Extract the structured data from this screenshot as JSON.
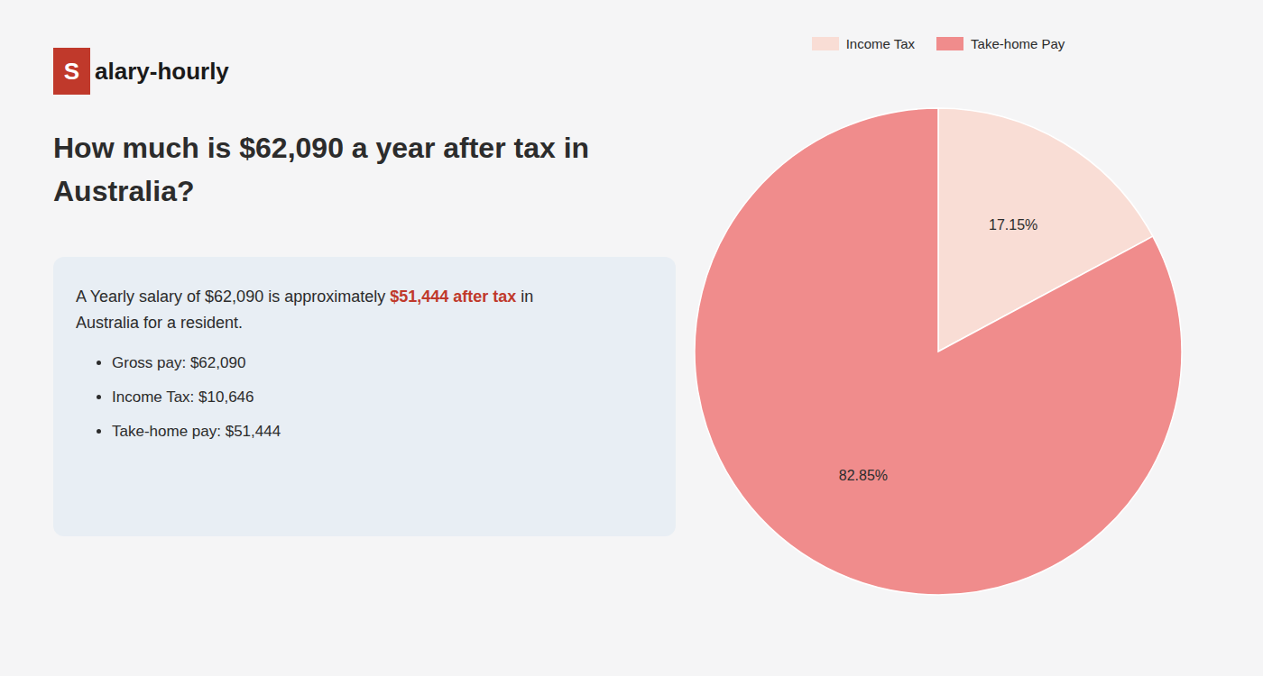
{
  "chart_data": {
    "type": "pie",
    "title": "How much is $62,090 a year after tax in Australia?",
    "categories": [
      "Income Tax",
      "Take-home Pay"
    ],
    "values": [
      17.15,
      82.85
    ],
    "value_labels": [
      "17.15%",
      "82.85%"
    ],
    "colors": [
      "#f9ddd5",
      "#f08c8c"
    ],
    "data_labels": true,
    "legend": "top",
    "annotations": [
      {
        "text": "S",
        "color": "#c0392b"
      },
      {
        "text": "alary-hourly"
      },
      {
        "text": "A Yearly salary of $62,090 is approximately "
      },
      {
        "text": "$51,444 after tax",
        "color": "#c0392b"
      },
      {
        "text": " in"
      },
      {
        "text": "Australia for a resident."
      },
      {
        "text": "Gross pay: $62,090"
      },
      {
        "text": "Income Tax: $10,646"
      },
      {
        "text": "Take-home pay: $51,444"
      }
    ]
  }
}
